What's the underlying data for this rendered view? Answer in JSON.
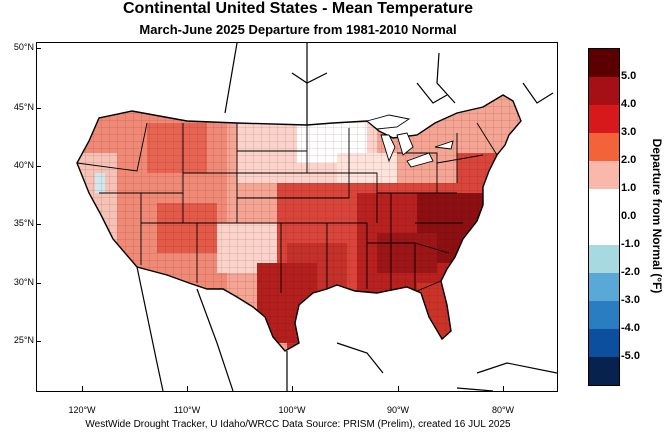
{
  "title": "Continental United States - Mean Temperature",
  "subtitle": "March-June 2025  Departure from 1981-2010 Normal",
  "credit": "WestWide Drought Tracker, U Idaho/WRCC Data Source: PRISM (Prelim), created 16 JUL 2025",
  "map": {
    "variable": "Mean Temperature Departure from Normal",
    "lat_ticks": [
      "50°N",
      "45°N",
      "40°N",
      "35°N",
      "30°N",
      "25°N"
    ],
    "lon_ticks": [
      "120°W",
      "110°W",
      "100°W",
      "90°W",
      "80°W"
    ],
    "lat_range": [
      21,
      50.5
    ],
    "lon_range": [
      -125,
      -76
    ],
    "dominant_pattern": "warm departures across most of the country, strongest in the Southeast, Texas and Mid-Atlantic"
  },
  "legend": {
    "title": "Departure from Normal (°F)",
    "labels": [
      "5.0",
      "4.0",
      "3.0",
      "2.0",
      "1.0",
      "0.0",
      "-1.0",
      "-2.0",
      "-3.0",
      "-4.0",
      "-5.0"
    ],
    "colors": [
      "#5b0000",
      "#a50f15",
      "#d7191c",
      "#f4623a",
      "#f9b8aa",
      "#ffffff",
      "#ffffff",
      "#a6d9e0",
      "#5aa8d6",
      "#2a7dc0",
      "#0b4f9e",
      "#08224f"
    ]
  }
}
